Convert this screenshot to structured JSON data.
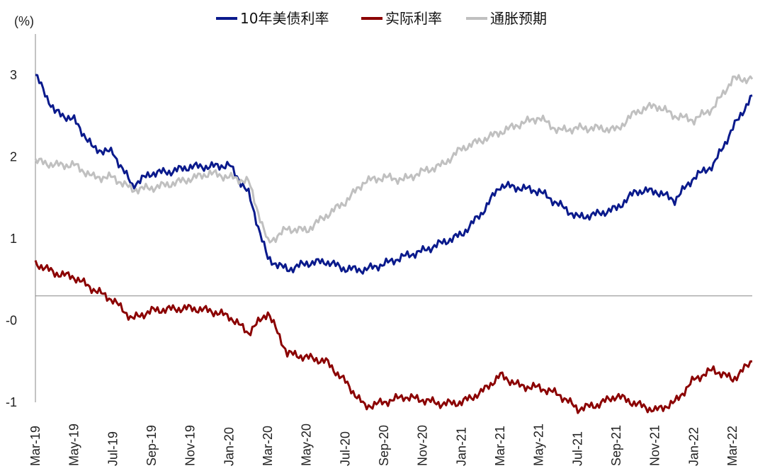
{
  "chart_data": {
    "type": "line",
    "title": "",
    "unit_label": "(%)",
    "xlabel": "",
    "ylabel": "",
    "ylim": [
      -1,
      3.5
    ],
    "x_tick_labels": [
      "Mar-19",
      "May-19",
      "Jul-19",
      "Sep-19",
      "Nov-19",
      "Jan-20",
      "Mar-20",
      "May-20",
      "Jul-20",
      "Sep-20",
      "Nov-20",
      "Jan-21",
      "Mar-21",
      "May-21",
      "Jul-21",
      "Sep-21",
      "Nov-21",
      "Jan-22",
      "Mar-22"
    ],
    "y_ticks": [
      {
        "value": 3,
        "label": "3",
        "color": "#222222"
      },
      {
        "value": 2,
        "label": "2",
        "color": "#222222"
      },
      {
        "value": 1,
        "label": "1",
        "color": "#222222"
      },
      {
        "value": 0,
        "label": "-0",
        "color": "#e02020"
      },
      {
        "value": -1,
        "label": "-1",
        "color": "#222222"
      }
    ],
    "legend_position": "top-center",
    "grid": false,
    "x": [
      "2019-03",
      "2019-04",
      "2019-05",
      "2019-06",
      "2019-07",
      "2019-08",
      "2019-09",
      "2019-10",
      "2019-11",
      "2019-12",
      "2020-01",
      "2020-02",
      "2020-03",
      "2020-04",
      "2020-05",
      "2020-06",
      "2020-07",
      "2020-08",
      "2020-09",
      "2020-10",
      "2020-11",
      "2020-12",
      "2021-01",
      "2021-02",
      "2021-03",
      "2021-04",
      "2021-05",
      "2021-06",
      "2021-07",
      "2021-08",
      "2021-09",
      "2021-10",
      "2021-11",
      "2021-12",
      "2022-01",
      "2022-02",
      "2022-03",
      "2022-04"
    ],
    "series": [
      {
        "name": "10年美债利率",
        "color": "#0a1a8c",
        "values": [
          3.0,
          2.55,
          2.45,
          2.1,
          2.05,
          1.65,
          1.8,
          1.82,
          1.88,
          1.88,
          1.9,
          1.55,
          0.75,
          0.62,
          0.7,
          0.72,
          0.63,
          0.62,
          0.69,
          0.78,
          0.85,
          0.95,
          1.05,
          1.3,
          1.65,
          1.62,
          1.58,
          1.42,
          1.26,
          1.3,
          1.37,
          1.58,
          1.58,
          1.47,
          1.75,
          1.9,
          2.35,
          2.75
        ]
      },
      {
        "name": "实际利率",
        "color": "#8b0000",
        "values": [
          0.7,
          0.58,
          0.53,
          0.38,
          0.25,
          0.02,
          0.12,
          0.14,
          0.15,
          0.12,
          0.05,
          -0.15,
          0.1,
          -0.4,
          -0.45,
          -0.5,
          -0.75,
          -1.05,
          -1.0,
          -0.93,
          -0.97,
          -1.02,
          -1.0,
          -0.88,
          -0.67,
          -0.8,
          -0.82,
          -0.9,
          -1.08,
          -1.03,
          -0.92,
          -1.02,
          -1.1,
          -1.0,
          -0.72,
          -0.6,
          -0.72,
          -0.5
        ]
      },
      {
        "name": "通胀预期",
        "color": "#c0c0c0",
        "values": [
          1.95,
          1.9,
          1.9,
          1.75,
          1.75,
          1.6,
          1.62,
          1.67,
          1.73,
          1.8,
          1.75,
          1.7,
          0.95,
          1.12,
          1.1,
          1.28,
          1.45,
          1.7,
          1.75,
          1.72,
          1.82,
          1.9,
          2.1,
          2.2,
          2.3,
          2.4,
          2.48,
          2.32,
          2.35,
          2.35,
          2.33,
          2.55,
          2.63,
          2.5,
          2.45,
          2.6,
          2.95,
          2.95
        ]
      }
    ]
  }
}
